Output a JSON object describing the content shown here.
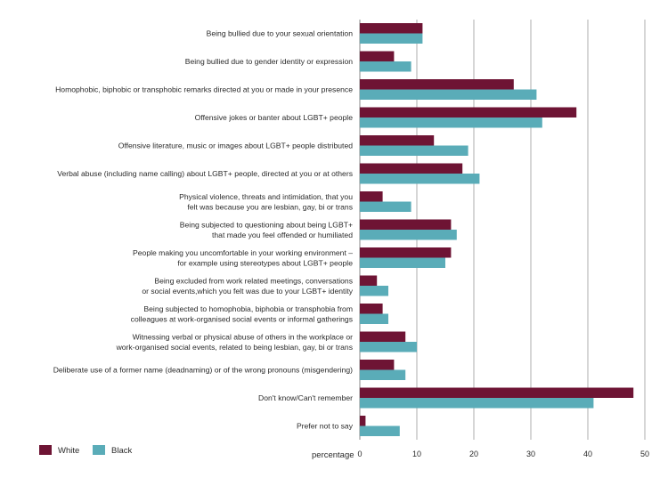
{
  "chart_data": {
    "type": "bar",
    "orientation": "horizontal",
    "xlabel": "percentage",
    "xlim": [
      0,
      50
    ],
    "xticks": [
      0,
      10,
      20,
      30,
      40,
      50
    ],
    "grid": true,
    "legend_position": "bottom-left",
    "categories": [
      [
        "Being bullied  due to your sexual orientation"
      ],
      [
        "Being bullied  due to gender identity or expression"
      ],
      [
        "Homophobic, biphobic or transphobic remarks directed at you or made in your presence"
      ],
      [
        "Offensive jokes or banter about LGBT+ people"
      ],
      [
        "Offensive literature, music or images about LGBT+ people distributed"
      ],
      [
        "Verbal abuse (including name calling) about LGBT+ people, directed at you or at others"
      ],
      [
        "Physical violence, threats and intimidation, that you",
        "felt was because you are lesbian, gay, bi or trans"
      ],
      [
        "Being subjected to questioning about being LGBT+",
        "that made you feel offended or humiliated"
      ],
      [
        "People making you uncomfortable in your working environment –",
        "for example using stereotypes about LGBT+ people"
      ],
      [
        "Being excluded from work related meetings, conversations",
        "or social events,which you felt was due to your LGBT+ identity"
      ],
      [
        "Being subjected to homophobia, biphobia or transphobia from",
        "colleagues at work-organised social events or informal gatherings"
      ],
      [
        "Witnessing verbal or physical abuse of others in the workplace or",
        "work-organised social events, related to being lesbian, gay, bi or trans"
      ],
      [
        "Deliberate use of a former name (deadnaming) or of the wrong pronouns (misgendering)"
      ],
      [
        "Don't know/Can't remember"
      ],
      [
        "Prefer not to say"
      ]
    ],
    "series": [
      {
        "name": "White",
        "color": "#6e1434",
        "values": [
          11,
          6,
          27,
          38,
          13,
          18,
          4,
          16,
          16,
          3,
          4,
          8,
          6,
          48,
          1
        ]
      },
      {
        "name": "Black",
        "color": "#5aacb8",
        "values": [
          11,
          9,
          31,
          32,
          19,
          21,
          9,
          17,
          15,
          5,
          5,
          10,
          8,
          41,
          7
        ]
      }
    ]
  }
}
